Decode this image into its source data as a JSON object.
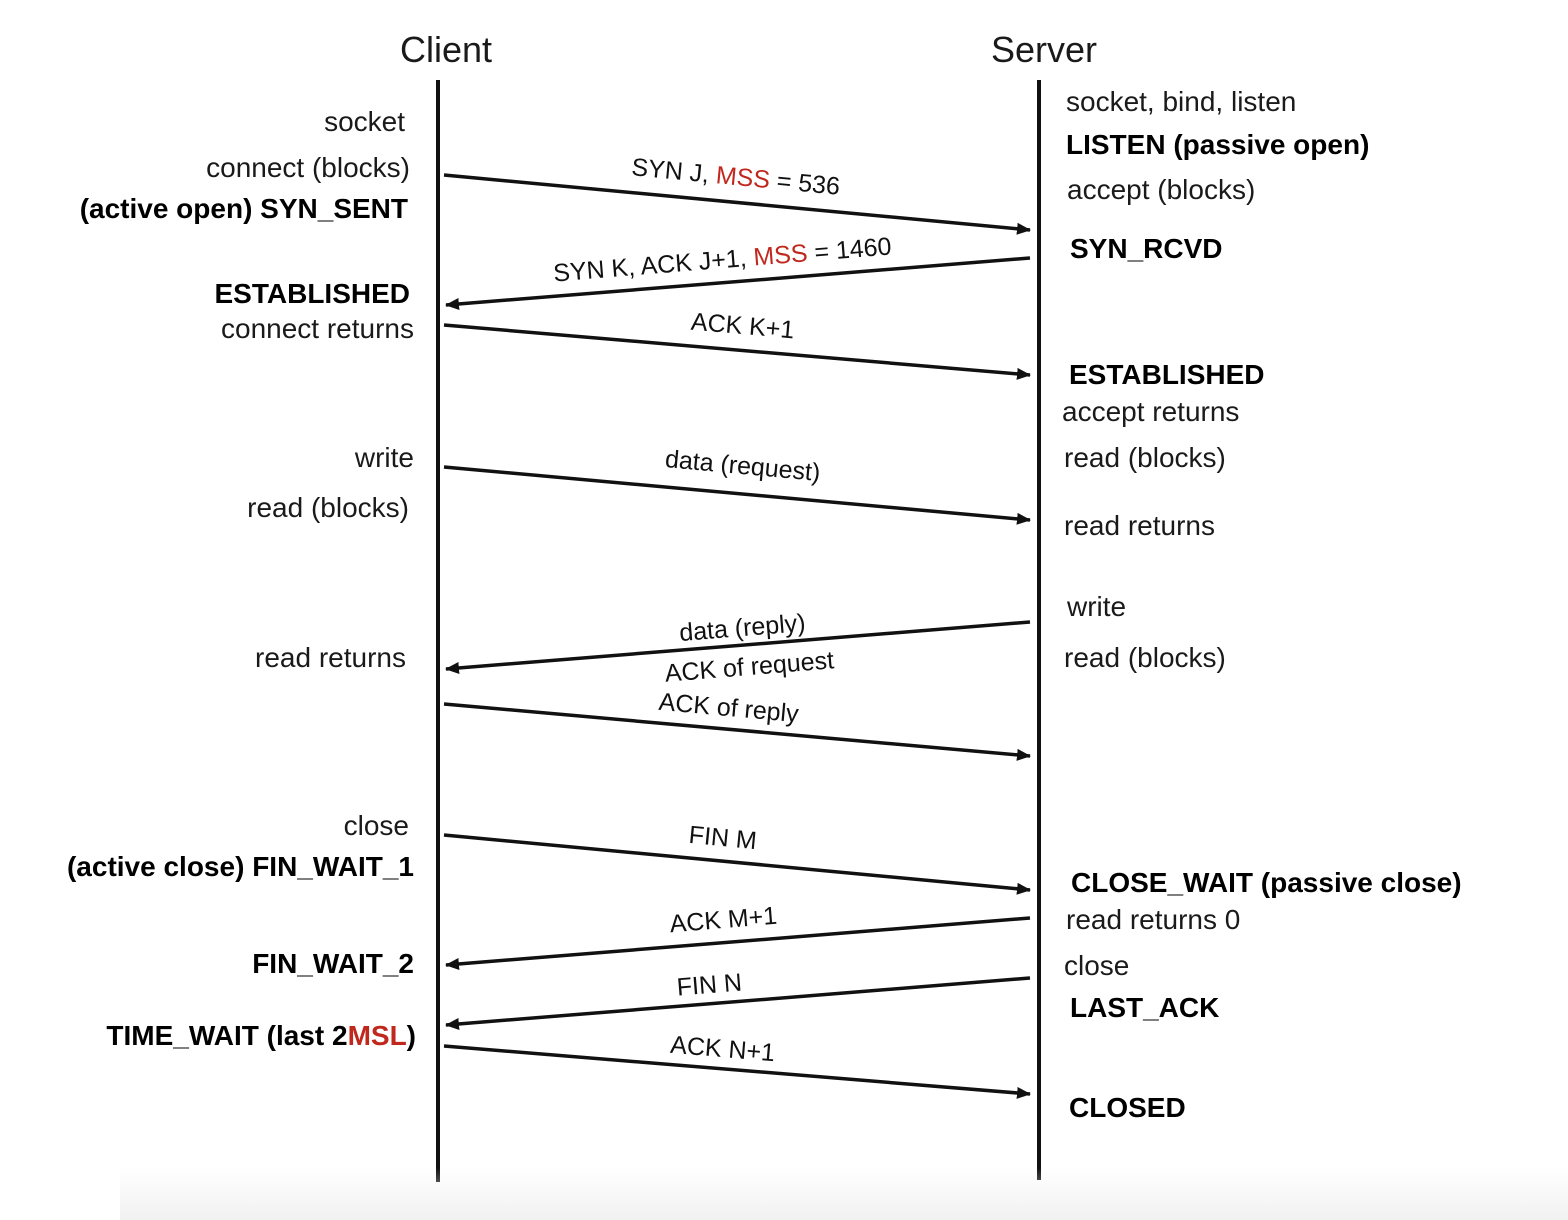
{
  "colors": {
    "ink": "#111111",
    "accent": "#c0281e",
    "background": "#ffffff"
  },
  "lanes": {
    "client": "Client",
    "server": "Server"
  },
  "client_notes": {
    "socket": "socket",
    "connect_blocks": "connect (blocks)",
    "active_open_pre": "(active open) ",
    "syn_sent": "SYN_SENT",
    "established": "ESTABLISHED",
    "connect_returns": "connect returns",
    "write": "write",
    "read_blocks": "read (blocks)",
    "read_returns": "read returns",
    "close": "close",
    "active_close_pre": "(active close) ",
    "fin_wait_1": "FIN_WAIT_1",
    "fin_wait_2": "FIN_WAIT_2",
    "time_wait_pre": "TIME_WAIT (last 2",
    "time_wait_msl": "MSL",
    "time_wait_post": ")"
  },
  "server_notes": {
    "socket_bind_listen": "socket, bind, listen",
    "listen": "LISTEN (passive open)",
    "accept_blocks": "accept (blocks)",
    "syn_rcvd": "SYN_RCVD",
    "established": "ESTABLISHED",
    "accept_returns": "accept returns",
    "read_blocks": "read (blocks)",
    "read_returns": "read returns",
    "write": "write",
    "read_blocks_2": "read (blocks)",
    "close_wait": "CLOSE_WAIT (passive close)",
    "read_returns_0": "read returns 0",
    "close": "close",
    "last_ack": "LAST_ACK",
    "closed": "CLOSED"
  },
  "messages": {
    "syn_j_pre": "SYN J, ",
    "syn_j_mss": "MSS",
    "syn_j_post": " = 536",
    "syn_k_pre": "SYN K, ACK J+1, ",
    "syn_k_mss": "MSS",
    "syn_k_post": " = 1460",
    "ack_k1": "ACK K+1",
    "data_request": "data (request)",
    "data_reply": "data (reply)",
    "ack_of_request": "ACK of request",
    "ack_of_reply": "ACK of reply",
    "fin_m": "FIN M",
    "ack_m1": "ACK M+1",
    "fin_n": "FIN N",
    "ack_n1": "ACK N+1"
  }
}
